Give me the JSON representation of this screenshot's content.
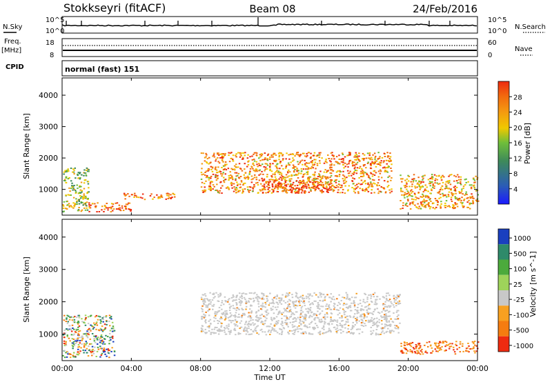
{
  "header": {
    "station": "Stokkseyri (fitACF)",
    "beam": "Beam 08",
    "date": "24/Feb/2016"
  },
  "noise_panel": {
    "left_label": "N.Sky",
    "right_label": "N.Search",
    "ticks_left": [
      "10^5",
      "10^0"
    ],
    "ticks_right": [
      "10^5",
      "10^0"
    ]
  },
  "freq_panel": {
    "left_label_1": "Freq.",
    "left_label_2": "[MHz]",
    "right_label": "Nave",
    "ticks_left": [
      "18",
      "8"
    ],
    "ticks_right": [
      "60",
      "0"
    ]
  },
  "cpid_panel": {
    "label": "CPID",
    "value": "normal (fast) 151"
  },
  "chart_data": [
    {
      "type": "heatmap",
      "title": "",
      "xlabel": "Time UT",
      "ylabel": "Slant Range [km]",
      "ylim": [
        180,
        4550
      ],
      "yticks": [
        "1000",
        "2000",
        "3000",
        "4000"
      ],
      "colorbar_label": "Power [dB]",
      "colorbar_ticks": [
        "4",
        "8",
        "12",
        "16",
        "20",
        "24",
        "28"
      ],
      "colorbar_colors": [
        "#1a1aff",
        "#2b5db5",
        "#3e8a5a",
        "#6fbe3a",
        "#f0c800",
        "#f49a10",
        "#f26a0f",
        "#ee2b10"
      ],
      "echo_regions": [
        {
          "t": [
            0.0,
            1.5
          ],
          "r": [
            300,
            1700
          ],
          "level": 0.5
        },
        {
          "t": [
            1.5,
            4.0
          ],
          "r": [
            300,
            600
          ],
          "level": 0.9
        },
        {
          "t": [
            3.5,
            6.5
          ],
          "r": [
            700,
            900
          ],
          "level": 0.85
        },
        {
          "t": [
            8.0,
            19.0
          ],
          "r": [
            900,
            2200
          ],
          "level": 0.75
        },
        {
          "t": [
            11.5,
            15.5
          ],
          "r": [
            900,
            1300
          ],
          "level": 0.95
        },
        {
          "t": [
            19.5,
            24.0
          ],
          "r": [
            400,
            1500
          ],
          "level": 0.7
        }
      ]
    },
    {
      "type": "heatmap",
      "title": "",
      "xlabel": "Time UT",
      "ylabel": "Slant Range [km]",
      "ylim": [
        180,
        4550
      ],
      "yticks": [
        "1000",
        "2000",
        "3000",
        "4000"
      ],
      "colorbar_label": "Velocity [m s^-1]",
      "colorbar_ticks": [
        "1000",
        "500",
        "100",
        "25",
        "-25",
        "-100",
        "-500",
        "-1000"
      ],
      "colorbar_colors": [
        "#1a3fbf",
        "#2e8a6a",
        "#4caa3c",
        "#9ed35a",
        "#c8c8c8",
        "#f7a020",
        "#f57c10",
        "#ee2b10"
      ],
      "echo_regions": [
        {
          "t": [
            0.0,
            3.0
          ],
          "r": [
            300,
            1600
          ],
          "level": "mixed"
        },
        {
          "t": [
            8.0,
            19.5
          ],
          "r": [
            1000,
            2300
          ],
          "level": "near-zero"
        },
        {
          "t": [
            19.5,
            24.0
          ],
          "r": [
            400,
            800
          ],
          "level": "negative"
        }
      ]
    }
  ],
  "time_axis": {
    "labels": [
      "00:00",
      "04:00",
      "08:00",
      "12:00",
      "16:00",
      "20:00",
      "00:00"
    ],
    "label": "Time UT"
  }
}
